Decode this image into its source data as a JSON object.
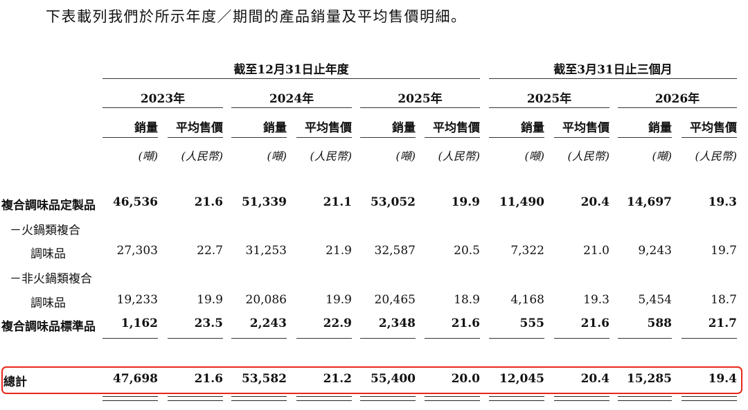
{
  "intro": "下表載列我們於所示年度／期間的產品銷量及平均售價明細。",
  "groups": [
    "截至12月31日止年度",
    "截至3月31日止三個月"
  ],
  "years": [
    "2023年",
    "2024年",
    "2025年",
    "2025年",
    "2026年"
  ],
  "col_headers": {
    "volume": "銷量",
    "price": "平均售價"
  },
  "units": {
    "volume": "(噸)",
    "price": "(人民幣)"
  },
  "rows": [
    {
      "label": "複合調味品定製品",
      "bold": true,
      "values": [
        "46,536",
        "21.6",
        "51,339",
        "21.1",
        "53,052",
        "19.9",
        "11,490",
        "20.4",
        "14,697",
        "19.3"
      ]
    },
    {
      "label": "－火鍋類複合",
      "bold": false,
      "values": []
    },
    {
      "label": "調味品",
      "bold": false,
      "values": [
        "27,303",
        "22.7",
        "31,253",
        "21.9",
        "32,587",
        "20.5",
        "7,322",
        "21.0",
        "9,243",
        "19.7"
      ]
    },
    {
      "label": "－非火鍋類複合",
      "bold": false,
      "values": []
    },
    {
      "label": "調味品",
      "bold": false,
      "values": [
        "19,233",
        "19.9",
        "20,086",
        "19.9",
        "20,465",
        "18.9",
        "4,168",
        "19.3",
        "5,454",
        "18.7"
      ]
    },
    {
      "label": "複合調味品標準品",
      "bold": true,
      "values": [
        "1,162",
        "23.5",
        "2,243",
        "22.9",
        "2,348",
        "21.6",
        "555",
        "21.6",
        "588",
        "21.7"
      ]
    }
  ],
  "total": {
    "label": "總計",
    "values": [
      "47,698",
      "21.6",
      "53,582",
      "21.2",
      "55,400",
      "20.0",
      "12,045",
      "20.4",
      "15,285",
      "19.4"
    ]
  },
  "highlight_color": "#e8271a"
}
